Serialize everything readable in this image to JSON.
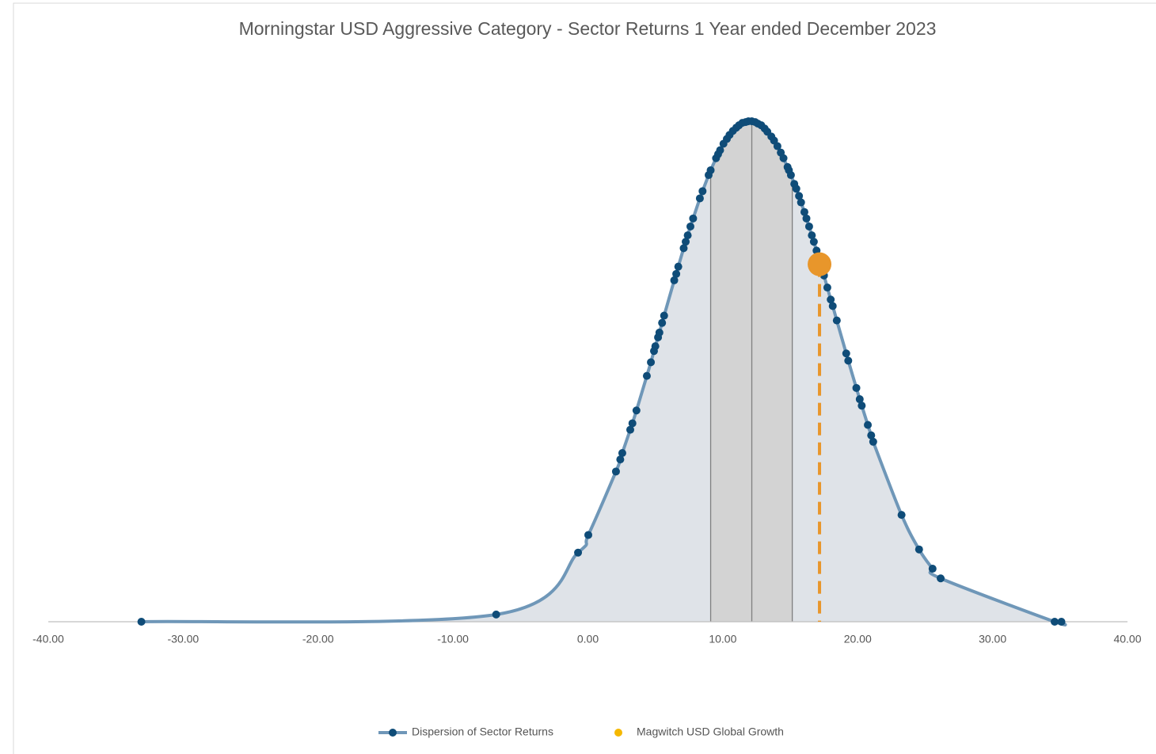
{
  "chart_data": {
    "type": "scatter",
    "title": "Morningstar USD Aggressive Category - Sector Returns 1 Year ended December 2023",
    "xlim": [
      -40,
      40
    ],
    "xticks": [
      {
        "value": -40,
        "label": "-40.00"
      },
      {
        "value": -30,
        "label": "-30.00"
      },
      {
        "value": -20,
        "label": "-20.00"
      },
      {
        "value": -10,
        "label": "-10.00"
      },
      {
        "value": 0,
        "label": "0.00"
      },
      {
        "value": 10,
        "label": "10.00"
      },
      {
        "value": 20,
        "label": "20.00"
      },
      {
        "value": 30,
        "label": "30.00"
      },
      {
        "value": 40,
        "label": "40.00"
      }
    ],
    "ylim": [
      0,
      0.07
    ],
    "grid": false,
    "legend": "bottom",
    "reference_lines": [
      9.1,
      12.15,
      15.15
    ],
    "series": [
      {
        "name": "Dispersion of Sector Returns",
        "color": "#6f97b8",
        "marker_color": "#0f4c78",
        "fill": "#dfe3e8",
        "band_fill": "#d3d3d3",
        "x": [
          -33.1,
          -6.8,
          -0.73,
          0.03,
          2.08,
          2.4,
          2.55,
          3.14,
          3.3,
          3.6,
          4.37,
          4.67,
          4.9,
          5.0,
          5.2,
          5.3,
          5.5,
          5.65,
          6.4,
          6.55,
          6.7,
          7.1,
          7.25,
          7.4,
          7.6,
          7.8,
          8.3,
          8.5,
          8.95,
          9.1,
          9.5,
          9.65,
          9.8,
          10.05,
          10.3,
          10.5,
          10.75,
          11.0,
          11.2,
          11.45,
          11.7,
          11.9,
          12.15,
          12.4,
          12.6,
          12.85,
          13.1,
          13.3,
          13.6,
          13.8,
          14.05,
          14.3,
          14.5,
          14.8,
          14.9,
          15.05,
          15.3,
          15.45,
          15.65,
          15.8,
          16.05,
          16.2,
          16.4,
          16.6,
          16.75,
          16.95,
          17.3,
          17.5,
          17.75,
          18.0,
          18.15,
          18.45,
          19.15,
          19.3,
          19.9,
          20.15,
          20.3,
          20.75,
          21.0,
          21.15,
          23.25,
          24.55,
          25.55,
          26.15,
          34.6,
          35.1
        ],
        "values": [
          0,
          0.0009,
          0.0086,
          0.0108,
          0.0187,
          0.0202,
          0.021,
          0.0239,
          0.0247,
          0.0263,
          0.0306,
          0.0323,
          0.0337,
          0.0343,
          0.0354,
          0.036,
          0.0372,
          0.0381,
          0.0425,
          0.0433,
          0.0442,
          0.0465,
          0.0473,
          0.0481,
          0.0492,
          0.0502,
          0.0527,
          0.0536,
          0.0556,
          0.0562,
          0.0577,
          0.0582,
          0.0587,
          0.0595,
          0.0601,
          0.0606,
          0.0611,
          0.0615,
          0.0618,
          0.0621,
          0.0622,
          0.0623,
          0.0623,
          0.0622,
          0.062,
          0.0618,
          0.0614,
          0.061,
          0.0604,
          0.0599,
          0.0592,
          0.0584,
          0.0577,
          0.0566,
          0.0562,
          0.0556,
          0.0545,
          0.0539,
          0.053,
          0.0522,
          0.051,
          0.0502,
          0.0492,
          0.0481,
          0.0473,
          0.0462,
          0.0442,
          0.0431,
          0.0416,
          0.0401,
          0.0393,
          0.0375,
          0.0334,
          0.0325,
          0.0291,
          0.0277,
          0.0269,
          0.0245,
          0.0232,
          0.0224,
          0.0133,
          0.009,
          0.0066,
          0.0054,
          0,
          0
        ]
      },
      {
        "name": "Magwitch USD Global Growth",
        "color": "#e8962b",
        "legend_color": "#f5b800",
        "dashed": true,
        "x": [
          17.17
        ],
        "values": [
          0.0445
        ]
      }
    ]
  }
}
